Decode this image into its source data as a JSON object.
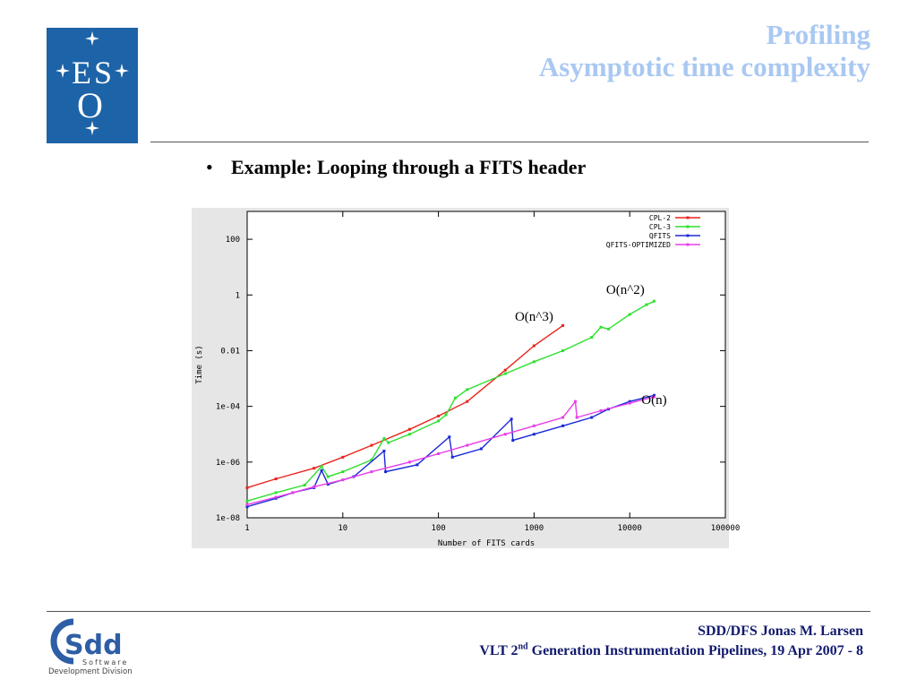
{
  "title": {
    "line1": "Profiling",
    "line2": "Asymptotic time complexity"
  },
  "bullet": {
    "text": "Example: Looping through a FITS header"
  },
  "logo_eso": {
    "letters": "ESO"
  },
  "logo_sdd": {
    "letters": "Sdd",
    "sub1": "Software",
    "sub2": "Development Division"
  },
  "footer": {
    "line1": "SDD/DFS Jonas M. Larsen",
    "line2_prefix": "VLT 2",
    "line2_sup": "nd",
    "line2_suffix": " Generation Instrumentation Pipelines, 19 Apr 2007 - 8"
  },
  "chart_data": {
    "type": "line",
    "xlabel": "Number of FITS cards",
    "ylabel": "Time (s)",
    "x_scale": "log",
    "y_scale": "log",
    "xlim": [
      1,
      100000
    ],
    "ylim": [
      1e-08,
      1000
    ],
    "x_ticks": [
      {
        "value": 1,
        "label": "1"
      },
      {
        "value": 10,
        "label": "10"
      },
      {
        "value": 100,
        "label": "100"
      },
      {
        "value": 1000,
        "label": "1000"
      },
      {
        "value": 10000,
        "label": "10000"
      },
      {
        "value": 100000,
        "label": "100000"
      }
    ],
    "y_ticks": [
      {
        "value": 1e-08,
        "label": "1e-08"
      },
      {
        "value": 1e-06,
        "label": "1e-06"
      },
      {
        "value": 0.0001,
        "label": "1e-04"
      },
      {
        "value": 0.01,
        "label": "0.01"
      },
      {
        "value": 1,
        "label": "1"
      },
      {
        "value": 100,
        "label": "100"
      }
    ],
    "legend_position": "top-right",
    "grid": false,
    "series": [
      {
        "name": "CPL-2",
        "color": "#e8241c",
        "points": [
          [
            1,
            1.2e-07
          ],
          [
            2,
            2.5e-07
          ],
          [
            5,
            6e-07
          ],
          [
            10,
            1.5e-06
          ],
          [
            20,
            4e-06
          ],
          [
            50,
            1.5e-05
          ],
          [
            100,
            4.5e-05
          ],
          [
            200,
            0.00015
          ],
          [
            500,
            0.002
          ],
          [
            1000,
            0.015
          ],
          [
            2000,
            0.08
          ]
        ]
      },
      {
        "name": "CPL-3",
        "color": "#2ee02e",
        "points": [
          [
            1,
            4e-08
          ],
          [
            2,
            8e-08
          ],
          [
            4,
            1.5e-07
          ],
          [
            6,
            7e-07
          ],
          [
            7,
            3e-07
          ],
          [
            10,
            4.5e-07
          ],
          [
            20,
            1.2e-06
          ],
          [
            27,
            7e-06
          ],
          [
            30,
            5e-06
          ],
          [
            50,
            1e-05
          ],
          [
            100,
            3e-05
          ],
          [
            120,
            5e-05
          ],
          [
            150,
            0.0002
          ],
          [
            200,
            0.0004
          ],
          [
            500,
            0.0015
          ],
          [
            1000,
            0.004
          ],
          [
            2000,
            0.01
          ],
          [
            4000,
            0.03
          ],
          [
            5000,
            0.07
          ],
          [
            6000,
            0.06
          ],
          [
            10000,
            0.2
          ],
          [
            15000,
            0.45
          ],
          [
            18000,
            0.6
          ]
        ]
      },
      {
        "name": "QFITS",
        "color": "#1a2ad8",
        "points": [
          [
            1,
            2.5e-08
          ],
          [
            2,
            5e-08
          ],
          [
            3,
            8e-08
          ],
          [
            5,
            1.2e-07
          ],
          [
            6,
            5e-07
          ],
          [
            7,
            1.6e-07
          ],
          [
            13,
            3e-07
          ],
          [
            27,
            2.5e-06
          ],
          [
            28,
            4.5e-07
          ],
          [
            60,
            8e-07
          ],
          [
            130,
            8e-06
          ],
          [
            140,
            1.5e-06
          ],
          [
            280,
            3e-06
          ],
          [
            580,
            3.5e-05
          ],
          [
            600,
            6e-06
          ],
          [
            1000,
            1e-05
          ],
          [
            2000,
            2e-05
          ],
          [
            4000,
            4e-05
          ],
          [
            6000,
            8e-05
          ],
          [
            10000,
            0.00015
          ],
          [
            18000,
            0.00025
          ]
        ]
      },
      {
        "name": "QFITS-OPTIMIZED",
        "color": "#e83ee8",
        "points": [
          [
            1,
            3e-08
          ],
          [
            2,
            5.5e-08
          ],
          [
            3,
            8e-08
          ],
          [
            5,
            1.3e-07
          ],
          [
            10,
            2.3e-07
          ],
          [
            20,
            4.5e-07
          ],
          [
            50,
            1e-06
          ],
          [
            100,
            2e-06
          ],
          [
            200,
            4e-06
          ],
          [
            500,
            1e-05
          ],
          [
            1000,
            2e-05
          ],
          [
            2000,
            4e-05
          ],
          [
            2700,
            0.00015
          ],
          [
            2800,
            4e-05
          ],
          [
            5000,
            7e-05
          ],
          [
            10000,
            0.00013
          ],
          [
            18000,
            0.00022
          ]
        ]
      }
    ],
    "annotations": [
      {
        "text": "O(n^3)",
        "x": 1000,
        "y": 0.12
      },
      {
        "text": "O(n^2)",
        "x": 9000,
        "y": 1.1
      },
      {
        "text": "O(n)",
        "x": 18000,
        "y": 0.00012
      }
    ]
  }
}
